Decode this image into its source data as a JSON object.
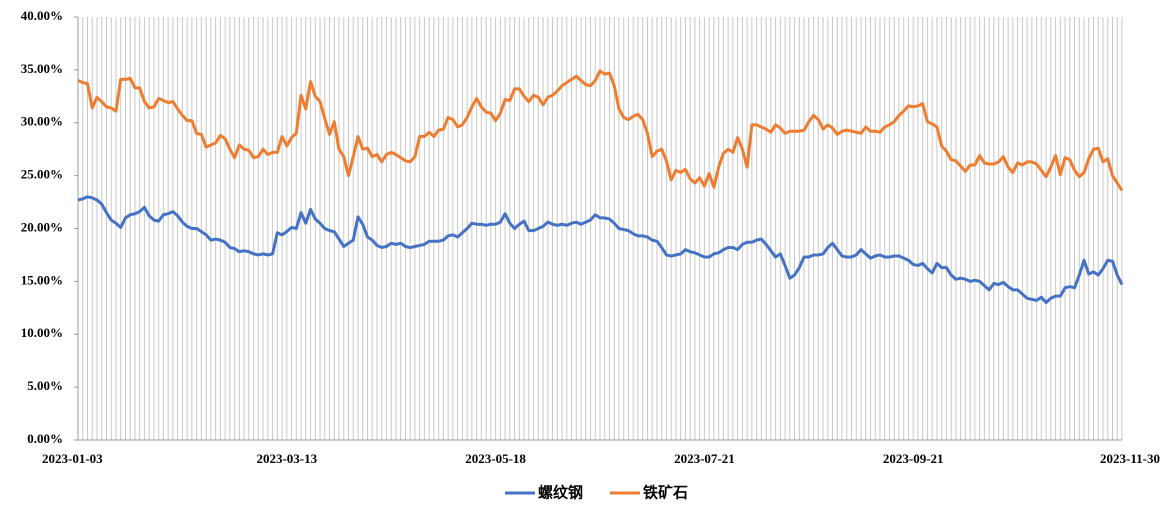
{
  "chart_data": {
    "type": "line",
    "categories": [
      "2023-01-03",
      null,
      null,
      null,
      null,
      null,
      null,
      null,
      null,
      null,
      null,
      null,
      null,
      null,
      null,
      null,
      null,
      null,
      null,
      null,
      null,
      null,
      null,
      null,
      null,
      null,
      null,
      null,
      null,
      null,
      null,
      null,
      null,
      null,
      null,
      null,
      null,
      null,
      null,
      null,
      null,
      null,
      null,
      null,
      "2023-03-13",
      null,
      null,
      null,
      null,
      null,
      null,
      null,
      null,
      null,
      null,
      null,
      null,
      null,
      null,
      null,
      null,
      null,
      null,
      null,
      null,
      null,
      null,
      null,
      null,
      null,
      null,
      null,
      null,
      null,
      null,
      null,
      null,
      null,
      null,
      null,
      null,
      null,
      null,
      null,
      null,
      null,
      null,
      null,
      "2023-05-18",
      null,
      null,
      null,
      null,
      null,
      null,
      null,
      null,
      null,
      null,
      null,
      null,
      null,
      null,
      null,
      null,
      null,
      null,
      null,
      null,
      null,
      null,
      null,
      null,
      null,
      null,
      null,
      null,
      null,
      null,
      null,
      null,
      null,
      null,
      null,
      null,
      null,
      null,
      null,
      null,
      null,
      null,
      null,
      "2023-07-21",
      null,
      null,
      null,
      null,
      null,
      null,
      null,
      null,
      null,
      null,
      null,
      null,
      null,
      null,
      null,
      null,
      null,
      null,
      null,
      null,
      null,
      null,
      null,
      null,
      null,
      null,
      null,
      null,
      null,
      null,
      null,
      null,
      null,
      null,
      null,
      null,
      null,
      null,
      null,
      null,
      null,
      null,
      null,
      "2023-09-21",
      null,
      null,
      null,
      null,
      null,
      null,
      null,
      null,
      null,
      null,
      null,
      null,
      null,
      null,
      null,
      null,
      null,
      null,
      null,
      null,
      null,
      null,
      null,
      null,
      null,
      null,
      null,
      null,
      null,
      null,
      null,
      null,
      null,
      null,
      null,
      null,
      null,
      null,
      null,
      null,
      null,
      null,
      null,
      "2023-11-30"
    ],
    "series": [
      {
        "name": "螺纹钢",
        "color": "#4472c4",
        "values": [
          22.7,
          22.8,
          23.0,
          22.9,
          22.7,
          22.3,
          21.5,
          20.8,
          20.5,
          20.1,
          21.0,
          21.3,
          21.4,
          21.6,
          22.0,
          21.2,
          20.8,
          20.7,
          21.3,
          21.4,
          21.6,
          21.2,
          20.6,
          20.2,
          20.0,
          20.0,
          19.7,
          19.4,
          18.9,
          19.0,
          18.9,
          18.7,
          18.2,
          18.1,
          17.8,
          17.9,
          17.8,
          17.6,
          17.5,
          17.6,
          17.5,
          17.6,
          19.6,
          19.4,
          19.7,
          20.1,
          20.0,
          21.5,
          20.5,
          21.8,
          20.9,
          20.5,
          20.0,
          19.8,
          19.7,
          19.0,
          18.3,
          18.6,
          18.9,
          21.1,
          20.4,
          19.2,
          18.9,
          18.4,
          18.2,
          18.3,
          18.6,
          18.5,
          18.6,
          18.3,
          18.2,
          18.3,
          18.4,
          18.5,
          18.8,
          18.8,
          18.8,
          18.9,
          19.3,
          19.4,
          19.2,
          19.6,
          20.0,
          20.5,
          20.4,
          20.4,
          20.3,
          20.4,
          20.4,
          20.6,
          21.4,
          20.5,
          20.0,
          20.4,
          20.7,
          19.8,
          19.8,
          20.0,
          20.2,
          20.6,
          20.4,
          20.3,
          20.4,
          20.3,
          20.5,
          20.6,
          20.4,
          20.6,
          20.8,
          21.3,
          21.0,
          21.0,
          20.9,
          20.5,
          20.0,
          19.9,
          19.8,
          19.5,
          19.3,
          19.3,
          19.2,
          18.9,
          18.8,
          18.2,
          17.5,
          17.4,
          17.5,
          17.6,
          18.0,
          17.8,
          17.7,
          17.5,
          17.3,
          17.3,
          17.6,
          17.7,
          18.0,
          18.2,
          18.2,
          18.0,
          18.5,
          18.7,
          18.7,
          18.9,
          19.0,
          18.5,
          17.9,
          17.3,
          17.6,
          16.5,
          15.3,
          15.6,
          16.3,
          17.3,
          17.3,
          17.5,
          17.5,
          17.6,
          18.2,
          18.6,
          18.0,
          17.4,
          17.3,
          17.3,
          17.5,
          18.0,
          17.6,
          17.2,
          17.4,
          17.5,
          17.3,
          17.3,
          17.4,
          17.4,
          17.2,
          17.0,
          16.6,
          16.5,
          16.7,
          16.2,
          15.8,
          16.7,
          16.3,
          16.3,
          15.6,
          15.2,
          15.3,
          15.2,
          15.0,
          15.1,
          15.0,
          14.6,
          14.2,
          14.8,
          14.7,
          14.9,
          14.5,
          14.2,
          14.2,
          13.8,
          13.4,
          13.3,
          13.2,
          13.5,
          13.0,
          13.4,
          13.6,
          13.6,
          14.4,
          14.5,
          14.4,
          15.6,
          17.0,
          15.7,
          15.9,
          15.6,
          16.2,
          17.0,
          16.9,
          15.6,
          14.7
        ]
      },
      {
        "name": "铁矿石",
        "color": "#ed7d31",
        "values": [
          34.0,
          33.8,
          33.7,
          31.4,
          32.4,
          32.0,
          31.5,
          31.4,
          31.1,
          34.1,
          34.1,
          34.2,
          33.3,
          33.3,
          32.0,
          31.4,
          31.5,
          32.3,
          32.1,
          31.9,
          32.0,
          31.3,
          30.7,
          30.2,
          30.2,
          29.0,
          28.9,
          27.7,
          27.9,
          28.1,
          28.8,
          28.5,
          27.5,
          26.7,
          27.9,
          27.5,
          27.4,
          26.7,
          26.8,
          27.5,
          27.0,
          27.2,
          27.2,
          28.7,
          27.8,
          28.6,
          29.0,
          32.6,
          31.3,
          33.9,
          32.5,
          32.0,
          30.4,
          28.9,
          30.1,
          27.5,
          26.8,
          25.0,
          26.8,
          28.7,
          27.5,
          27.6,
          26.8,
          27.0,
          26.3,
          27.0,
          27.2,
          27.0,
          26.7,
          26.4,
          26.3,
          26.8,
          28.7,
          28.7,
          29.1,
          28.7,
          29.3,
          29.4,
          30.5,
          30.3,
          29.6,
          29.8,
          30.5,
          31.5,
          32.3,
          31.5,
          31.0,
          30.9,
          30.2,
          30.9,
          32.2,
          32.1,
          33.2,
          33.2,
          32.5,
          32.0,
          32.6,
          32.4,
          31.7,
          32.4,
          32.6,
          33.0,
          33.5,
          33.8,
          34.1,
          34.4,
          34.0,
          33.6,
          33.5,
          34.0,
          34.9,
          34.6,
          34.7,
          33.5,
          31.3,
          30.5,
          30.3,
          30.6,
          30.8,
          30.3,
          29.0,
          26.8,
          27.3,
          27.5,
          26.4,
          24.6,
          25.5,
          25.3,
          25.6,
          24.7,
          24.3,
          24.8,
          24.0,
          25.2,
          23.9,
          25.8,
          27.1,
          27.5,
          27.2,
          28.6,
          27.5,
          25.8,
          29.8,
          29.8,
          29.6,
          29.4,
          29.1,
          29.8,
          29.5,
          29.0,
          29.2,
          29.2,
          29.2,
          29.3,
          30.1,
          30.7,
          30.3,
          29.4,
          29.8,
          29.5,
          28.9,
          29.2,
          29.3,
          29.2,
          29.1,
          29.0,
          29.6,
          29.2,
          29.2,
          29.1,
          29.6,
          29.8,
          30.1,
          30.7,
          31.1,
          31.6,
          31.5,
          31.6,
          31.8,
          30.1,
          29.9,
          29.6,
          27.8,
          27.3,
          26.5,
          26.4,
          25.9,
          25.4,
          26.0,
          26.0,
          26.9,
          26.2,
          26.1,
          26.1,
          26.3,
          26.8,
          25.8,
          25.3,
          26.2,
          26.0,
          26.3,
          26.3,
          26.1,
          25.5,
          24.9,
          25.8,
          26.9,
          25.1,
          26.7,
          26.5,
          25.5,
          24.9,
          25.3,
          26.6,
          27.5,
          27.6,
          26.3,
          26.6,
          25.0,
          24.3,
          23.6
        ]
      }
    ],
    "ylim": [
      0,
      40
    ],
    "yticks": [
      {
        "value": 0,
        "label": "0.00%"
      },
      {
        "value": 5,
        "label": "5.00%"
      },
      {
        "value": 10,
        "label": "10.00%"
      },
      {
        "value": 15,
        "label": "15.00%"
      },
      {
        "value": 20,
        "label": "20.00%"
      },
      {
        "value": 25,
        "label": "25.00%"
      },
      {
        "value": 30,
        "label": "30.00%"
      },
      {
        "value": 35,
        "label": "35.00%"
      },
      {
        "value": 40,
        "label": "40.00%"
      }
    ],
    "grid": true,
    "legend": "bottom"
  }
}
